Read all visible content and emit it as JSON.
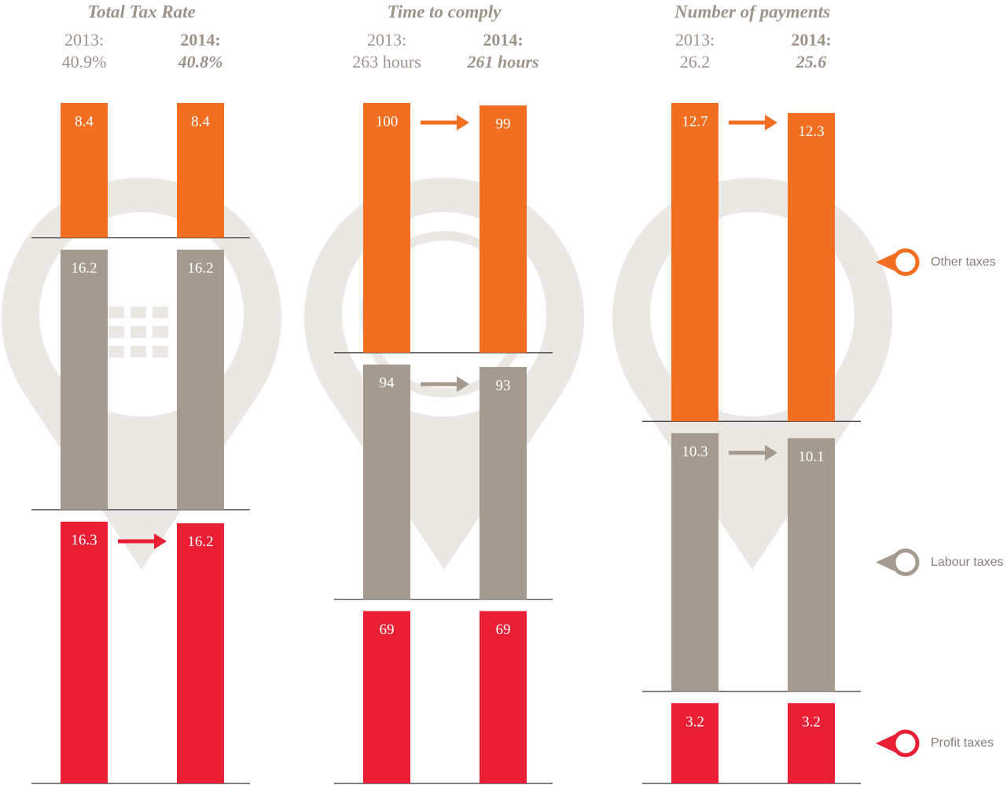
{
  "chart_data": [
    {
      "type": "bar",
      "title": "Total Tax Rate",
      "categories": [
        "2013:",
        "2014:"
      ],
      "total_values": [
        40.9,
        40.8
      ],
      "total_value_labels": [
        "40.9%",
        "40.8%"
      ],
      "series": [
        {
          "color": "#f26f21",
          "values": [
            8.4,
            8.4
          ]
        },
        {
          "color": "#a59a8f",
          "values": [
            16.2,
            16.2
          ]
        },
        {
          "color": "#e91f35",
          "values": [
            16.3,
            16.2
          ]
        }
      ]
    },
    {
      "type": "bar",
      "title": "Time to comply",
      "categories": [
        "2013:",
        "2014:"
      ],
      "total_values": [
        263,
        261
      ],
      "total_value_labels": [
        "263 hours",
        "261 hours"
      ],
      "series": [
        {
          "color": "#f26f21",
          "values": [
            100,
            99
          ]
        },
        {
          "color": "#a59a8f",
          "values": [
            94,
            93
          ]
        },
        {
          "color": "#e91f35",
          "values": [
            69,
            69
          ]
        }
      ]
    },
    {
      "type": "bar",
      "title": "Number of payments",
      "categories": [
        "2013:",
        "2014:"
      ],
      "total_values": [
        26.2,
        25.6
      ],
      "series": [
        {
          "name": "Other taxes",
          "color": "#f26f21",
          "values": [
            12.7,
            12.3
          ]
        },
        {
          "name": "Labour taxes",
          "color": "#a59a8f",
          "values": [
            10.3,
            10.1
          ]
        },
        {
          "name": "Profit taxes",
          "color": "#e91f35",
          "values": [
            3.2,
            3.2
          ]
        }
      ]
    }
  ]
}
